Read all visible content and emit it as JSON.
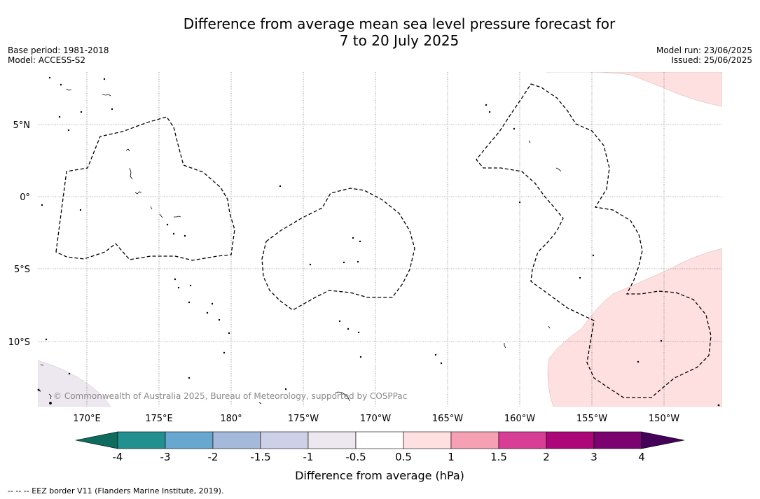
{
  "title": {
    "line1": "Difference from average mean sea level pressure forecast for",
    "line2": "7 to 20 July 2025"
  },
  "meta": {
    "base_period": "Base period: 1981-2018",
    "model": "Model: ACCESS-S2",
    "model_run": "Model run: 23/06/2025",
    "issued": "Issued: 25/06/2025"
  },
  "map": {
    "lat_labels": [
      "5°N",
      "0°",
      "5°S",
      "10°S"
    ],
    "lon_labels": [
      "170°E",
      "175°E",
      "180°",
      "175°W",
      "170°W",
      "165°W",
      "160°W",
      "155°W",
      "150°W"
    ],
    "copyright": "© Commonwealth of Australia 2025, Bureau of Meteorology, supported by COSPPac",
    "anomaly_areas": [
      {
        "region": "north-east",
        "category": "0.5 to 1"
      },
      {
        "region": "south-east",
        "category": "0.5 to 1"
      },
      {
        "region": "south-west",
        "category": "-1 to -0.5"
      }
    ]
  },
  "colorbar": {
    "tick_labels": [
      "-4",
      "-3",
      "-2",
      "-1.5",
      "-1",
      "-0.5",
      "0.5",
      "1",
      "1.5",
      "2",
      "3",
      "4"
    ],
    "colors": [
      "#0f6b5e",
      "#22908f",
      "#67a7d0",
      "#a5b9da",
      "#cdd0e6",
      "#ede7ef",
      "#ffffff",
      "#fde0df",
      "#f6a0b4",
      "#d93e96",
      "#ad0678",
      "#7b0370",
      "#45005a"
    ],
    "label": "Difference from average (hPa)"
  },
  "footer": "--  --  -- EEZ border V11 (Flanders Marine Institute, 2019)."
}
